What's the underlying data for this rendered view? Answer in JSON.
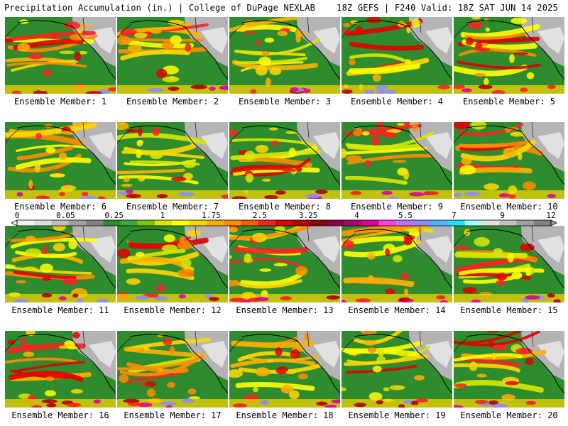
{
  "header": {
    "left_title": "Precipitation Accumulation (in.) | College of DuPage NEXLAB",
    "right_title": "18Z GEFS | F240 Valid: 18Z SAT JUN 14 2025"
  },
  "panels": [
    {
      "label": "Ensemble Member: 1"
    },
    {
      "label": "Ensemble Member: 2"
    },
    {
      "label": "Ensemble Member: 3"
    },
    {
      "label": "Ensemble Member: 4"
    },
    {
      "label": "Ensemble Member: 5"
    },
    {
      "label": "Ensemble Member: 6"
    },
    {
      "label": "Ensemble Member: 7"
    },
    {
      "label": "Ensemble Member: 8"
    },
    {
      "label": "Ensemble Member: 9"
    },
    {
      "label": "Ensemble Member: 10"
    },
    {
      "label": "Ensemble Member: 11"
    },
    {
      "label": "Ensemble Member: 12"
    },
    {
      "label": "Ensemble Member: 13"
    },
    {
      "label": "Ensemble Member: 14"
    },
    {
      "label": "Ensemble Member: 15"
    },
    {
      "label": "Ensemble Member: 16"
    },
    {
      "label": "Ensemble Member: 17"
    },
    {
      "label": "Ensemble Member: 18"
    },
    {
      "label": "Ensemble Member: 19"
    },
    {
      "label": "Ensemble Member: 20"
    }
  ],
  "legend": {
    "labels": [
      "0",
      "0.05",
      "0.25",
      "1",
      "1.75",
      "2.5",
      "3.25",
      "4",
      "5.5",
      "7",
      "9",
      "12"
    ],
    "colors": [
      "#f2f2f2",
      "#dcdcdc",
      "#bebebe",
      "#a0a0a0",
      "#828282",
      "#2e8b2e",
      "#3da83d",
      "#7cc80a",
      "#d8e800",
      "#ffff00",
      "#ffd700",
      "#ffb000",
      "#ff8c00",
      "#ff5a00",
      "#ff2020",
      "#e00000",
      "#b40000",
      "#8c0000",
      "#8c0046",
      "#b4006e",
      "#e000a0",
      "#ff40e0",
      "#c070ff",
      "#8c8cff",
      "#50b4ff",
      "#20e0ff",
      "#a0ffff",
      "#e0e0e0",
      "#c0c0c0",
      "#a0a0a0",
      "#808080"
    ]
  },
  "palette": {
    "ocean_green": "#2e8b2e",
    "land_grey": "#b4b4b4",
    "snow_white": "#ececec",
    "coastline": "#000000"
  }
}
